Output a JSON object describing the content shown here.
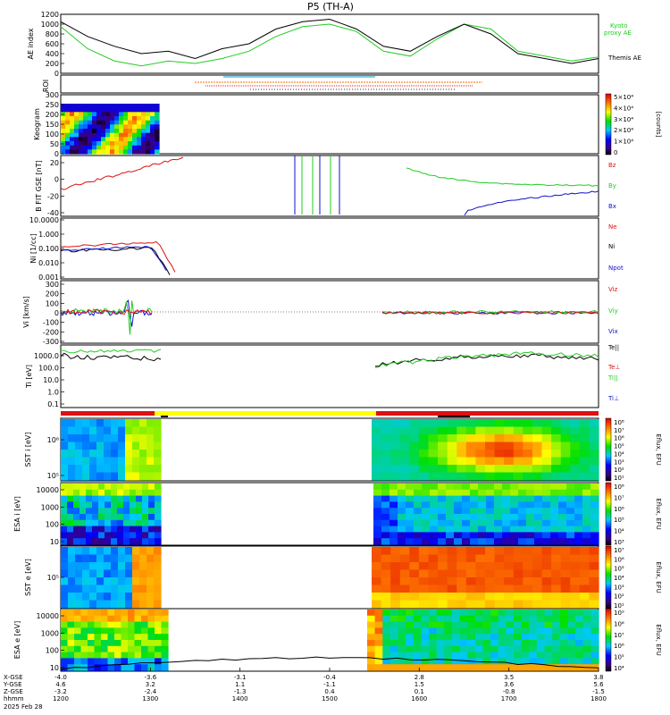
{
  "title": "P5 (TH-A)",
  "colors": {
    "green": "#22cc22",
    "black": "#000000",
    "red": "#dd1111",
    "blue": "#1111cc",
    "yellow": "#ffff00",
    "orange": "#ff6a00"
  },
  "chart_data": [
    {
      "type": "line",
      "panel": "ae",
      "ylabel": "AE index",
      "yticks": [
        "1200",
        "1000",
        "800",
        "600",
        "400",
        "200",
        "0"
      ],
      "ylim": [
        0,
        1200
      ],
      "legend": [
        "Kyoto",
        "proxy AE",
        "Themis AE"
      ],
      "series": [
        {
          "name": "Kyoto proxy AE",
          "color": "green",
          "x": [
            0,
            0.05,
            0.1,
            0.15,
            0.2,
            0.25,
            0.3,
            0.35,
            0.4,
            0.45,
            0.5,
            0.55,
            0.6,
            0.65,
            0.7,
            0.75,
            0.8,
            0.85,
            0.9,
            0.95,
            1.0
          ],
          "y": [
            950,
            500,
            250,
            150,
            250,
            200,
            300,
            450,
            750,
            950,
            1000,
            850,
            450,
            350,
            700,
            1000,
            900,
            450,
            350,
            250,
            330
          ]
        },
        {
          "name": "Themis AE",
          "color": "black",
          "x": [
            0,
            0.05,
            0.1,
            0.15,
            0.2,
            0.25,
            0.3,
            0.35,
            0.4,
            0.45,
            0.5,
            0.55,
            0.6,
            0.65,
            0.7,
            0.75,
            0.8,
            0.85,
            0.9,
            0.95,
            1.0
          ],
          "y": [
            1050,
            750,
            550,
            400,
            450,
            300,
            500,
            600,
            900,
            1050,
            1100,
            900,
            550,
            450,
            750,
            1000,
            800,
            400,
            300,
            200,
            300
          ]
        }
      ]
    },
    {
      "type": "line",
      "panel": "roi",
      "ylabel": "ROI"
    },
    {
      "type": "heatmap",
      "panel": "keogram",
      "ylabel": "Keogram",
      "yticks": [
        "300",
        "250",
        "200",
        "150",
        "100",
        "50",
        "0"
      ],
      "colorbar": {
        "label": "[counts]",
        "ticks": [
          "5×10⁴",
          "4×10⁴",
          "3×10⁴",
          "2×10⁴",
          "1×10⁴",
          "0"
        ]
      }
    },
    {
      "type": "line",
      "panel": "bfield",
      "ylabel": "B FIT GSE [nT]",
      "yticks": [
        "20",
        "0",
        "-20",
        "-40"
      ],
      "legend": [
        "Bz",
        "By",
        "Bx"
      ]
    },
    {
      "type": "line",
      "panel": "density",
      "ylabel": "Ni [1/cc]",
      "yticks": [
        "10.0000",
        "1.000",
        "0.100",
        "0.010",
        "0.001"
      ],
      "legend": [
        "Ne",
        "Ni",
        "Npot"
      ]
    },
    {
      "type": "line",
      "panel": "velocity",
      "ylabel": "Vi [km/s]",
      "yticks": [
        "300",
        "200",
        "100",
        "0",
        "-100",
        "-200",
        "-300"
      ],
      "legend": [
        "Viz",
        "Viy",
        "Vix"
      ]
    },
    {
      "type": "line",
      "panel": "temperature",
      "ylabel": "Ti [eV]",
      "yticks": [
        "1000.0",
        "100.0",
        "10.0",
        "1.0",
        "0.1"
      ],
      "legend": [
        "Te||",
        "Te⊥",
        "Ti||",
        "Ti⊥"
      ]
    },
    {
      "type": "heatmap",
      "panel": "sst_i",
      "ylabel": "SST i [eV]",
      "yticks": [
        "10⁶",
        "10⁵"
      ],
      "colorbar": {
        "label": "Eflux, EFU",
        "ticks": [
          "10⁸",
          "10⁷",
          "10⁶",
          "10⁵",
          "10⁴",
          "10³",
          "10²",
          "10¹"
        ]
      }
    },
    {
      "type": "heatmap",
      "panel": "esa_i",
      "ylabel": "ESA i [eV]",
      "yticks": [
        "10000",
        "1000",
        "100",
        "10"
      ],
      "colorbar": {
        "label": "Eflux, EFU",
        "ticks": [
          "10⁸",
          "10⁷",
          "10⁶",
          "10⁵",
          "10⁴",
          "10³"
        ]
      }
    },
    {
      "type": "heatmap",
      "panel": "sst_e",
      "ylabel": "SST e [eV]",
      "yticks": [
        "10⁵"
      ],
      "colorbar": {
        "label": "Eflux, EFU",
        "ticks": [
          "10⁷",
          "10⁶",
          "10⁵",
          "10⁴",
          "10³",
          "10²",
          "10¹"
        ]
      }
    },
    {
      "type": "heatmap",
      "panel": "esa_e",
      "ylabel": "ESA e [eV]",
      "yticks": [
        "10000",
        "1000",
        "100",
        "10"
      ],
      "colorbar": {
        "label": "Eflux, EFU",
        "ticks": [
          "10⁹",
          "10⁸",
          "10⁷",
          "10⁶",
          "10⁵",
          "10⁴"
        ]
      }
    }
  ],
  "xaxis": {
    "row_labels": [
      "X-GSE",
      "Y-GSE",
      "Z-GSE",
      "hhmm",
      "2025 Feb 28"
    ],
    "ticks": [
      {
        "x": "-4.0",
        "y": "4.6",
        "z": "-3.2",
        "t": "1200"
      },
      {
        "x": "-3.6",
        "y": "3.2",
        "z": "-2.4",
        "t": "1300"
      },
      {
        "x": "-3.1",
        "y": "1.1",
        "z": "-1.3",
        "t": "1400"
      },
      {
        "x": "-0.4",
        "y": "-1.1",
        "z": "0.4",
        "t": "1500"
      },
      {
        "x": "2.8",
        "y": "1.5",
        "z": "0.1",
        "t": "1600"
      },
      {
        "x": "3.5",
        "y": "3.6",
        "z": "-0.8",
        "t": "1700"
      },
      {
        "x": "3.8",
        "y": "5.6",
        "z": "-1.5",
        "t": "1800"
      }
    ]
  }
}
